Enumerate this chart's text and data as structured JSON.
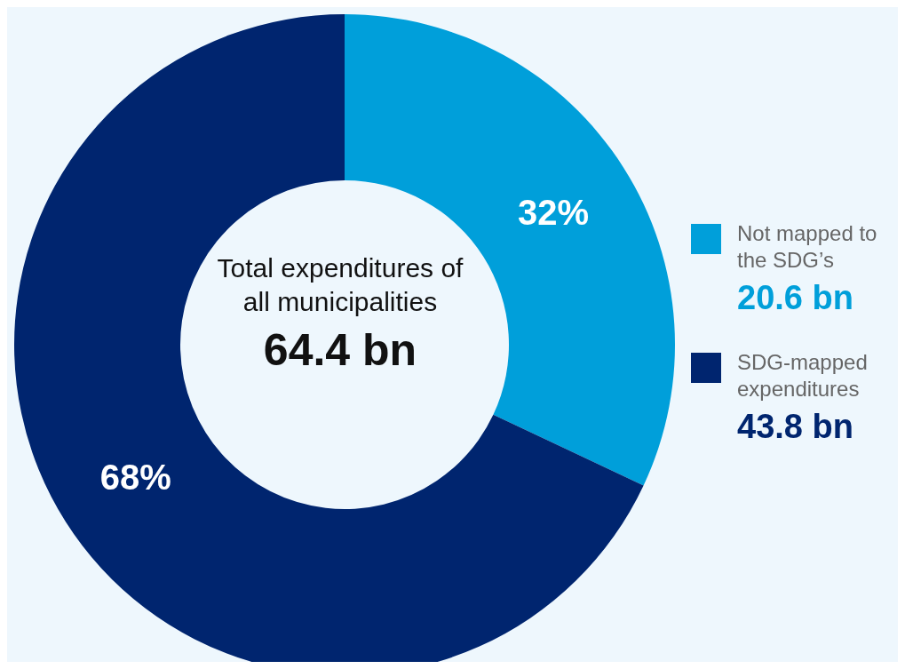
{
  "chart_data": {
    "type": "donut",
    "categories": [
      "Not mapped to the SDG’s",
      "SDG-mapped expenditures"
    ],
    "values": [
      32,
      68
    ],
    "colors": [
      "#009fda",
      "#00256f"
    ],
    "value_labels": [
      "32%",
      "68%"
    ],
    "legend": "right",
    "annotations": [
      "Total expenditures of all municipalities",
      "64.4 bn",
      "20.6 bn",
      "43.8 bn"
    ]
  }
}
